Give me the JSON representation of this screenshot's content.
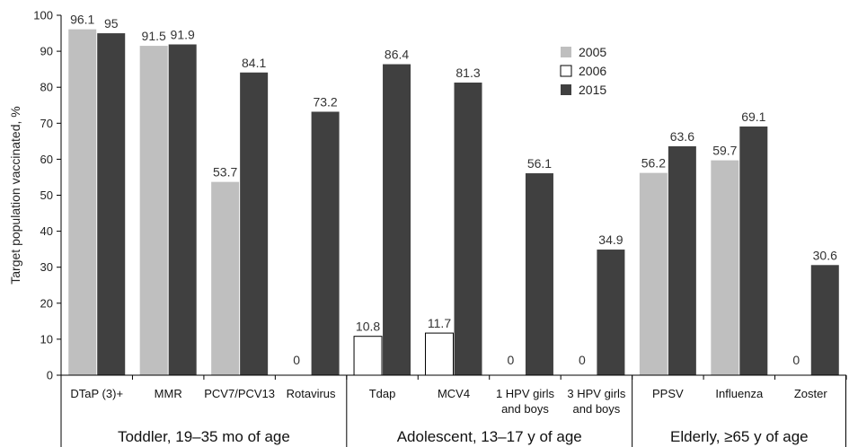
{
  "chart_data": {
    "type": "bar",
    "title": "",
    "ylabel": "Target population vaccinated, %",
    "ylim": [
      0,
      100
    ],
    "yticks": [
      0,
      10,
      20,
      30,
      40,
      50,
      60,
      70,
      80,
      90,
      100
    ],
    "grid": false,
    "legend_position": "top-right",
    "categories": [
      [
        "DTaP (3)+"
      ],
      [
        "MMR"
      ],
      [
        "PCV7/PCV13"
      ],
      [
        "Rotavirus"
      ],
      [
        "Tdap"
      ],
      [
        "MCV4"
      ],
      [
        "1 HPV girls",
        "and boys"
      ],
      [
        "3 HPV girls",
        "and boys"
      ],
      [
        "PPSV"
      ],
      [
        "Influenza"
      ],
      [
        "Zoster"
      ]
    ],
    "groups": [
      {
        "label": "Toddler, 19–35 mo of age",
        "start": 0,
        "end": 3
      },
      {
        "label": "Adolescent, 13–17 y of age",
        "start": 4,
        "end": 7
      },
      {
        "label": "Elderly, ≥65 y of age",
        "start": 8,
        "end": 10
      }
    ],
    "series": [
      {
        "name": "2005",
        "color": "#bfbfbf",
        "style": "fill",
        "labels": [
          "96.1",
          "91.5",
          "53.7",
          "0",
          null,
          null,
          "0",
          "0",
          "56.2",
          "59.7",
          "0"
        ],
        "values": [
          96.1,
          91.5,
          53.7,
          0,
          null,
          null,
          0,
          0,
          56.2,
          59.7,
          0
        ]
      },
      {
        "name": "2006",
        "color": "#ffffff",
        "style": "outline",
        "labels": [
          null,
          null,
          null,
          null,
          "10.8",
          "11.7",
          null,
          null,
          null,
          null,
          null
        ],
        "values": [
          null,
          null,
          null,
          null,
          10.8,
          11.7,
          null,
          null,
          null,
          null,
          null
        ]
      },
      {
        "name": "2015",
        "color": "#404040",
        "style": "fill",
        "labels": [
          "95",
          "91.9",
          "84.1",
          "73.2",
          "86.4",
          "81.3",
          "56.1",
          "34.9",
          "63.6",
          "69.1",
          "30.6"
        ],
        "values": [
          95,
          91.9,
          84.1,
          73.2,
          86.4,
          81.3,
          56.1,
          34.9,
          63.6,
          69.1,
          30.6
        ]
      }
    ]
  }
}
